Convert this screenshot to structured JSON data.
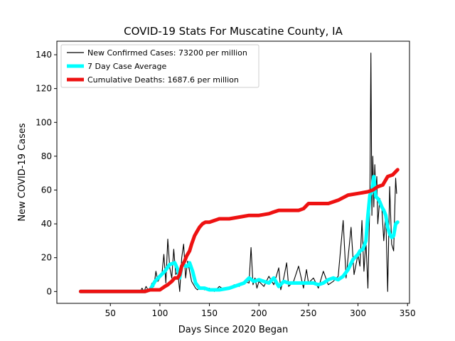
{
  "chart_data": {
    "type": "line",
    "title": "COVID-19 Stats For Muscatine County, IA",
    "xlabel": "Days Since 2020 Began",
    "ylabel": "New COVID-19 Cases",
    "xlim": [
      -4,
      352
    ],
    "ylim": [
      -7,
      148
    ],
    "x_ticks": [
      50,
      100,
      150,
      200,
      250,
      300,
      350
    ],
    "y_ticks": [
      0,
      20,
      40,
      60,
      80,
      100,
      120,
      140
    ],
    "grid": false,
    "legend_position": "top-left",
    "series": [
      {
        "name": "New Confirmed Cases: 73200 per million",
        "color": "#000000",
        "x": [
          20,
          30,
          40,
          50,
          60,
          70,
          80,
          82,
          84,
          86,
          88,
          90,
          92,
          94,
          96,
          98,
          100,
          102,
          104,
          106,
          108,
          110,
          112,
          114,
          116,
          118,
          120,
          122,
          124,
          126,
          128,
          130,
          132,
          134,
          136,
          138,
          140,
          145,
          150,
          155,
          160,
          165,
          170,
          175,
          180,
          185,
          190,
          192,
          194,
          196,
          198,
          200,
          205,
          210,
          215,
          220,
          222,
          225,
          228,
          230,
          235,
          240,
          245,
          248,
          250,
          255,
          260,
          265,
          270,
          275,
          280,
          285,
          288,
          290,
          293,
          296,
          300,
          302,
          304,
          306,
          308,
          310,
          312,
          313,
          314,
          315,
          316,
          317,
          318,
          319,
          320,
          322,
          324,
          326,
          328,
          330,
          332,
          334,
          336,
          338,
          339
        ],
        "y": [
          0,
          0,
          0,
          0,
          0,
          0,
          0,
          2,
          0,
          3,
          1,
          2,
          5,
          3,
          12,
          6,
          8,
          10,
          22,
          5,
          31,
          14,
          8,
          25,
          10,
          12,
          0,
          20,
          28,
          8,
          18,
          12,
          6,
          4,
          2,
          1,
          3,
          1,
          2,
          0,
          3,
          1,
          2,
          4,
          3,
          6,
          5,
          26,
          4,
          8,
          2,
          6,
          3,
          9,
          4,
          14,
          1,
          8,
          17,
          3,
          6,
          15,
          2,
          13,
          5,
          8,
          2,
          12,
          4,
          6,
          9,
          42,
          8,
          20,
          38,
          10,
          22,
          15,
          42,
          12,
          30,
          2,
          55,
          141,
          45,
          80,
          50,
          75,
          58,
          68,
          40,
          55,
          50,
          30,
          46,
          0,
          62,
          28,
          24,
          67,
          58
        ]
      },
      {
        "name": "7 Day Case Average",
        "color": "#00ffff",
        "x": [
          20,
          40,
          60,
          80,
          85,
          90,
          95,
          100,
          105,
          110,
          115,
          118,
          120,
          122,
          124,
          126,
          128,
          130,
          133,
          136,
          140,
          145,
          150,
          160,
          170,
          180,
          185,
          190,
          195,
          200,
          205,
          210,
          215,
          220,
          225,
          230,
          235,
          240,
          245,
          250,
          255,
          260,
          265,
          270,
          275,
          280,
          285,
          290,
          295,
          300,
          302,
          305,
          308,
          310,
          312,
          314,
          316,
          318,
          320,
          322,
          324,
          326,
          328,
          330,
          332,
          334,
          336,
          338,
          340
        ],
        "y": [
          0,
          0,
          0,
          0,
          0,
          1,
          6,
          9,
          12,
          16,
          17,
          13,
          8,
          15,
          16,
          15,
          15,
          17,
          12,
          5,
          2,
          2,
          1,
          1,
          2,
          4,
          5,
          8,
          6,
          7,
          6,
          5,
          8,
          3,
          6,
          5,
          5,
          5,
          5,
          5,
          5,
          4,
          5,
          7,
          8,
          7,
          9,
          13,
          19,
          22,
          24,
          25,
          30,
          45,
          57,
          59,
          68,
          56,
          55,
          53,
          50,
          48,
          45,
          38,
          34,
          32,
          33,
          40,
          41
        ]
      },
      {
        "name": "Cumulative Deaths: 1687.6 per million",
        "color": "#ee1111",
        "x": [
          20,
          40,
          60,
          80,
          85,
          90,
          95,
          100,
          105,
          108,
          110,
          112,
          115,
          118,
          120,
          122,
          125,
          127,
          130,
          132,
          135,
          138,
          140,
          143,
          146,
          150,
          160,
          170,
          180,
          190,
          200,
          210,
          215,
          220,
          230,
          240,
          245,
          250,
          260,
          270,
          280,
          290,
          300,
          310,
          315,
          320,
          325,
          330,
          335,
          340
        ],
        "y": [
          0,
          0,
          0,
          0,
          0,
          1,
          1,
          1,
          3,
          4,
          5,
          6,
          8,
          8,
          10,
          15,
          18,
          21,
          24,
          28,
          33,
          36,
          38,
          40,
          41,
          41,
          43,
          43,
          44,
          45,
          45,
          46,
          47,
          48,
          48,
          48,
          49,
          52,
          52,
          52,
          54,
          57,
          58,
          59,
          60,
          62,
          63,
          68,
          69,
          72
        ]
      }
    ]
  }
}
